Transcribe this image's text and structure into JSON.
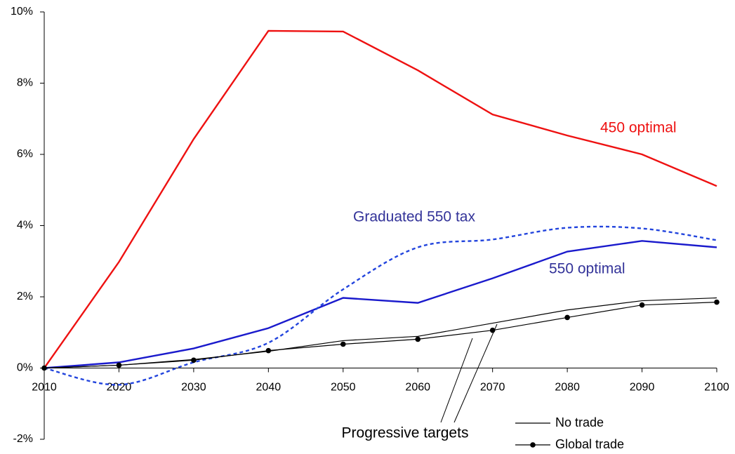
{
  "chart_data": {
    "type": "line",
    "x": [
      2010,
      2020,
      2030,
      2040,
      2050,
      2060,
      2070,
      2080,
      2090,
      2100
    ],
    "xlim": [
      2010,
      2100
    ],
    "xticks": [
      2010,
      2020,
      2030,
      2040,
      2050,
      2060,
      2070,
      2080,
      2090,
      2100
    ],
    "ylim": [
      -2,
      10
    ],
    "yticks": [
      {
        "value": -2,
        "label": "-2%"
      },
      {
        "value": 0,
        "label": "0%"
      },
      {
        "value": 2,
        "label": "2%"
      },
      {
        "value": 4,
        "label": "4%"
      },
      {
        "value": 6,
        "label": "6%"
      },
      {
        "value": 8,
        "label": "8%"
      },
      {
        "value": 10,
        "label": "10%"
      }
    ],
    "series": [
      {
        "name": "450 optimal",
        "color": "#ee1111",
        "style": "solid",
        "values": [
          0,
          2.98,
          6.43,
          9.47,
          9.45,
          8.36,
          7.12,
          6.53,
          6.0,
          5.11
        ]
      },
      {
        "name": "550 optimal",
        "color": "#1a1acc",
        "style": "solid",
        "values": [
          0,
          0.16,
          0.55,
          1.12,
          1.97,
          1.83,
          2.52,
          3.27,
          3.57,
          3.39
        ]
      },
      {
        "name": "Graduated 550 tax",
        "color": "#2244dd",
        "style": "dotted",
        "values": [
          0,
          -0.47,
          0.16,
          0.71,
          2.21,
          3.39,
          3.61,
          3.94,
          3.92,
          3.59
        ]
      },
      {
        "name": "No trade",
        "color": "#000000",
        "style": "solid",
        "values": [
          0,
          0.08,
          0.24,
          0.47,
          0.77,
          0.89,
          1.26,
          1.63,
          1.89,
          1.97
        ]
      },
      {
        "name": "Global trade",
        "color": "#000000",
        "style": "solid",
        "marker": "circle",
        "values": [
          0,
          0.08,
          0.22,
          0.49,
          0.67,
          0.81,
          1.06,
          1.42,
          1.77,
          1.85
        ]
      }
    ],
    "annotations": [
      "Progressive targets"
    ]
  }
}
